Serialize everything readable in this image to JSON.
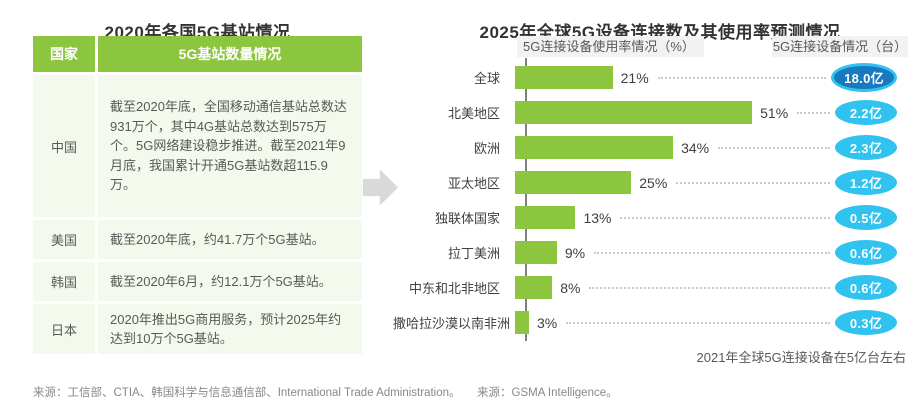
{
  "left_panel": {
    "title": "2020年各国5G基站情况",
    "source": "来源：工信部、CTIA、韩国科学与信息通信部、International Trade Administration。"
  },
  "right_panel": {
    "title": "2025年全球5G设备连接数及其使用率预测情况",
    "usage_label": "5G连接设备使用率情况（%）",
    "devices_label": "5G连接设备情况（台）",
    "annotation": "2021年全球5G连接设备在5亿台左右",
    "source": "来源：GSMA Intelligence。"
  },
  "chart_data": [
    {
      "type": "table",
      "title": "2020年各国5G基站情况",
      "columns": [
        "国家",
        "5G基站数量情况"
      ],
      "rows": [
        [
          "中国",
          "截至2020年底，全国移动通信基站总数达931万个，其中4G基站总数达到575万个。5G网络建设稳步推进。截至2021年9月底，我国累计开通5G基站数超115.9万。"
        ],
        [
          "美国",
          "截至2020年底，约41.7万个5G基站。"
        ],
        [
          "韩国",
          "截至2020年6月，约12.1万个5G基站。"
        ],
        [
          "日本",
          "2020年推出5G商用服务，预计2025年约达到10万个5G基站。"
        ]
      ]
    },
    {
      "type": "bar",
      "orientation": "horizontal",
      "title": "2025年全球5G设备连接数及其使用率预测情况",
      "categories": [
        "全球",
        "北美地区",
        "欧洲",
        "亚太地区",
        "独联体国家",
        "拉丁美洲",
        "中东和北非地区",
        "撒哈拉沙漠以南非洲"
      ],
      "series": [
        {
          "name": "5G连接设备使用率情况（%）",
          "unit": "%",
          "values": [
            21,
            51,
            34,
            25,
            13,
            9,
            8,
            3
          ],
          "labels": [
            "21%",
            "51%",
            "34%",
            "25%",
            "13%",
            "9%",
            "8%",
            "3%"
          ]
        },
        {
          "name": "5G连接设备情况（台）",
          "unit": "亿",
          "values": [
            18.0,
            2.2,
            2.3,
            1.2,
            0.5,
            0.6,
            0.6,
            0.3
          ],
          "labels": [
            "18.0亿",
            "2.2亿",
            "2.3亿",
            "1.2亿",
            "0.5亿",
            "0.6亿",
            "0.6亿",
            "0.3亿"
          ]
        }
      ],
      "xlim": [
        0,
        55
      ],
      "grid": false,
      "annotation": "2021年全球5G连接设备在5亿台左右",
      "highlight_first_badge": true
    }
  ],
  "colors": {
    "green": "#8cc63f",
    "table_body_bg": "#f3f9ec",
    "cyan": "#30c3f0",
    "dark_blue": "#1879be",
    "label_bg": "#f2f2f2",
    "arrow_gray": "#d9d9d9",
    "title_text": "#333333",
    "body_text": "#595959",
    "value_text": "#404040",
    "source_text": "#888888",
    "leader_gray": "#c9c9c9",
    "axis_gray": "#808080"
  }
}
